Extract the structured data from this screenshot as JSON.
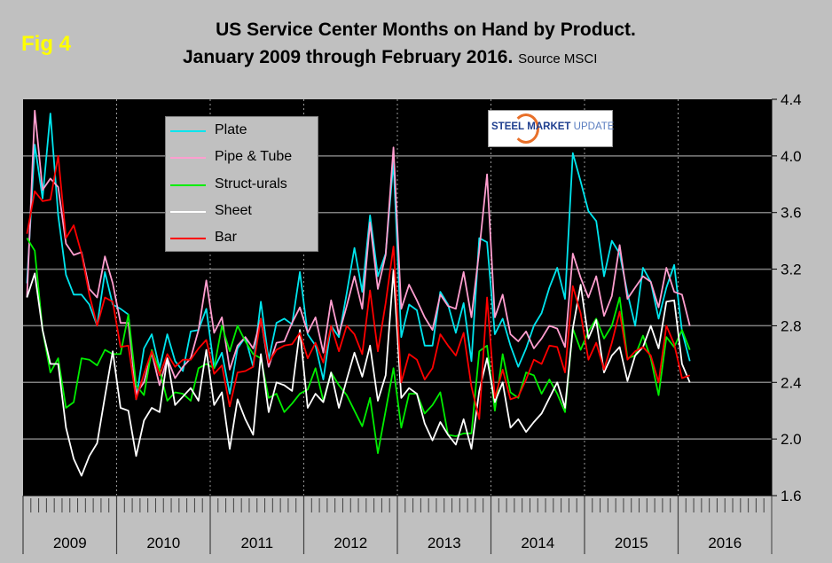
{
  "figure_label": "Fig 4",
  "logo": {
    "text_bold": "STEEL",
    "text_mid": "MARKET",
    "text_light": "UPDATE"
  },
  "chart_data": {
    "type": "line",
    "title": "US Service Center Months on Hand by Product.",
    "subtitle": "January 2009 through February 2016.",
    "source": "Source MSCI",
    "xlabel": "",
    "ylabel": "",
    "x_start": "January 2009",
    "x_end": "February 2016",
    "x_ticks": [
      "2009",
      "2010",
      "2011",
      "2012",
      "2013",
      "2014",
      "2015",
      "2016"
    ],
    "y_ticks": [
      "1.6",
      "2.0",
      "2.4",
      "2.8",
      "3.2",
      "3.6",
      "4.0",
      "4.4"
    ],
    "ylim": [
      1.6,
      4.4
    ],
    "grid": true,
    "y_axis_side": "right",
    "legend_position": "top-left",
    "series": [
      {
        "name": "Plate",
        "color": "#00e5ee",
        "values": [
          3.1,
          4.08,
          3.7,
          4.3,
          3.58,
          3.16,
          3.02,
          3.02,
          2.95,
          2.8,
          3.18,
          2.95,
          2.92,
          2.88,
          2.28,
          2.64,
          2.74,
          2.5,
          2.74,
          2.55,
          2.48,
          2.76,
          2.77,
          2.92,
          2.5,
          2.61,
          2.32,
          2.64,
          2.72,
          2.51,
          2.97,
          2.56,
          2.82,
          2.85,
          2.81,
          3.18,
          2.74,
          2.66,
          2.42,
          2.8,
          2.72,
          3.03,
          3.35,
          3.04,
          3.58,
          3.15,
          3.31,
          3.96,
          2.72,
          2.95,
          2.91,
          2.66,
          2.66,
          3.04,
          2.95,
          2.75,
          2.96,
          2.55,
          3.42,
          3.39,
          2.74,
          2.85,
          2.66,
          2.51,
          2.64,
          2.8,
          2.89,
          3.07,
          3.21,
          2.99,
          4.02,
          3.82,
          3.61,
          3.54,
          3.15,
          3.4,
          3.31,
          3.03,
          2.8,
          3.21,
          3.11,
          2.85,
          3.07,
          3.23,
          2.76,
          2.55
        ]
      },
      {
        "name": "Pipe & Tube",
        "color": "#ff9ecf",
        "values": [
          3.0,
          4.32,
          3.76,
          3.84,
          3.78,
          3.38,
          3.3,
          3.32,
          3.06,
          3.0,
          3.29,
          3.1,
          2.82,
          2.82,
          2.32,
          2.4,
          2.61,
          2.38,
          2.57,
          2.43,
          2.51,
          2.57,
          2.77,
          3.12,
          2.75,
          2.86,
          2.49,
          2.66,
          2.72,
          2.64,
          2.85,
          2.51,
          2.68,
          2.69,
          2.82,
          2.93,
          2.75,
          2.86,
          2.61,
          2.98,
          2.74,
          2.94,
          3.15,
          2.92,
          3.53,
          3.06,
          3.3,
          4.06,
          2.92,
          3.09,
          2.98,
          2.86,
          2.77,
          3.02,
          2.94,
          2.92,
          3.18,
          2.86,
          3.33,
          3.87,
          2.86,
          3.02,
          2.74,
          2.69,
          2.76,
          2.64,
          2.71,
          2.8,
          2.78,
          2.65,
          3.31,
          3.14,
          3.0,
          3.15,
          2.87,
          3.01,
          3.37,
          2.99,
          3.07,
          3.15,
          3.11,
          2.93,
          3.21,
          3.04,
          3.02,
          2.8
        ]
      },
      {
        "name": "Struct-urals",
        "color": "#00ee00",
        "values": [
          3.42,
          3.33,
          2.77,
          2.47,
          2.57,
          2.22,
          2.26,
          2.57,
          2.56,
          2.52,
          2.63,
          2.6,
          2.6,
          2.88,
          2.38,
          2.31,
          2.63,
          2.49,
          2.27,
          2.33,
          2.32,
          2.27,
          2.5,
          2.53,
          2.5,
          2.8,
          2.62,
          2.8,
          2.69,
          2.6,
          2.57,
          2.29,
          2.32,
          2.19,
          2.25,
          2.32,
          2.35,
          2.5,
          2.27,
          2.47,
          2.38,
          2.31,
          2.2,
          2.09,
          2.29,
          1.9,
          2.2,
          2.5,
          2.08,
          2.32,
          2.32,
          2.18,
          2.24,
          2.33,
          2.03,
          2.02,
          2.04,
          2.04,
          2.62,
          2.66,
          2.2,
          2.6,
          2.33,
          2.29,
          2.47,
          2.45,
          2.32,
          2.42,
          2.32,
          2.19,
          2.78,
          2.63,
          2.76,
          2.85,
          2.71,
          2.8,
          3.0,
          2.57,
          2.59,
          2.73,
          2.57,
          2.31,
          2.72,
          2.65,
          2.77,
          2.63
        ]
      },
      {
        "name": "Sheet",
        "color": "#ffffff",
        "values": [
          3.0,
          3.17,
          2.77,
          2.53,
          2.53,
          2.08,
          1.86,
          1.74,
          1.88,
          1.97,
          2.3,
          2.62,
          2.22,
          2.2,
          1.88,
          2.13,
          2.22,
          2.19,
          2.57,
          2.24,
          2.3,
          2.36,
          2.27,
          2.63,
          2.24,
          2.33,
          1.93,
          2.28,
          2.14,
          2.03,
          2.6,
          2.19,
          2.4,
          2.38,
          2.34,
          2.77,
          2.22,
          2.32,
          2.26,
          2.47,
          2.22,
          2.42,
          2.61,
          2.44,
          2.66,
          2.27,
          2.45,
          3.19,
          2.29,
          2.36,
          2.32,
          2.11,
          1.99,
          2.12,
          2.03,
          1.96,
          2.14,
          1.93,
          2.34,
          2.57,
          2.26,
          2.4,
          2.08,
          2.14,
          2.05,
          2.12,
          2.18,
          2.29,
          2.4,
          2.22,
          2.78,
          3.09,
          2.71,
          2.84,
          2.47,
          2.59,
          2.65,
          2.41,
          2.59,
          2.65,
          2.8,
          2.64,
          2.97,
          2.98,
          2.53,
          2.4
        ]
      },
      {
        "name": "Bar",
        "color": "#ff0000",
        "values": [
          3.45,
          3.75,
          3.68,
          3.69,
          4.0,
          3.42,
          3.51,
          3.31,
          3.02,
          2.8,
          3.0,
          2.97,
          2.65,
          2.66,
          2.28,
          2.46,
          2.62,
          2.45,
          2.6,
          2.51,
          2.56,
          2.56,
          2.64,
          2.7,
          2.46,
          2.52,
          2.23,
          2.47,
          2.48,
          2.51,
          2.85,
          2.54,
          2.63,
          2.66,
          2.67,
          2.75,
          2.57,
          2.68,
          2.54,
          2.8,
          2.62,
          2.8,
          2.74,
          2.6,
          3.05,
          2.62,
          2.96,
          3.36,
          2.4,
          2.6,
          2.56,
          2.42,
          2.5,
          2.74,
          2.66,
          2.59,
          2.75,
          2.37,
          2.14,
          3.0,
          2.29,
          2.49,
          2.28,
          2.3,
          2.42,
          2.56,
          2.53,
          2.66,
          2.65,
          2.47,
          3.08,
          2.89,
          2.56,
          2.68,
          2.49,
          2.68,
          2.9,
          2.56,
          2.62,
          2.65,
          2.59,
          2.4,
          2.8,
          2.67,
          2.43,
          2.45
        ]
      }
    ]
  }
}
